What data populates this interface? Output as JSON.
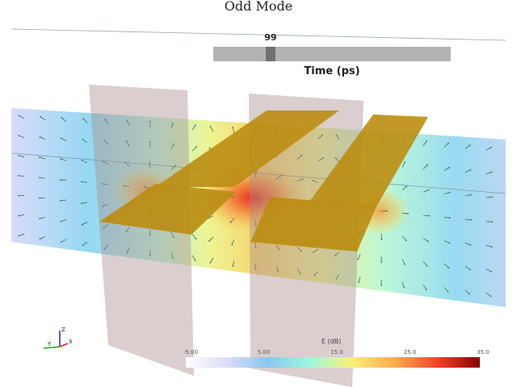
{
  "title": "Odd Mode",
  "time_slider": {
    "value": "99",
    "fraction": 0.23,
    "label": "Time (ps)"
  },
  "colorbar": {
    "title": "E (dB)",
    "range": [
      -5.0,
      35.0
    ],
    "ticks": [
      "-5.00",
      "5.00",
      "15.0",
      "25.0",
      "35.0"
    ],
    "gradient_stops": [
      "#ffffff",
      "#dcdcf7",
      "#88c6ef",
      "#9ef6e0",
      "#f7f27a",
      "#fca64b",
      "#f04028",
      "#8b0000"
    ]
  },
  "axes_triad": {
    "x_label": "X",
    "y_label": "Y",
    "z_label": "Z"
  },
  "colors": {
    "strip": "#c0900f",
    "dielectric": "#b99ea0",
    "x_axis": "#d22",
    "y_axis": "#2a2",
    "z_axis": "#22c"
  },
  "icons": [
    "axes-triad-icon"
  ]
}
